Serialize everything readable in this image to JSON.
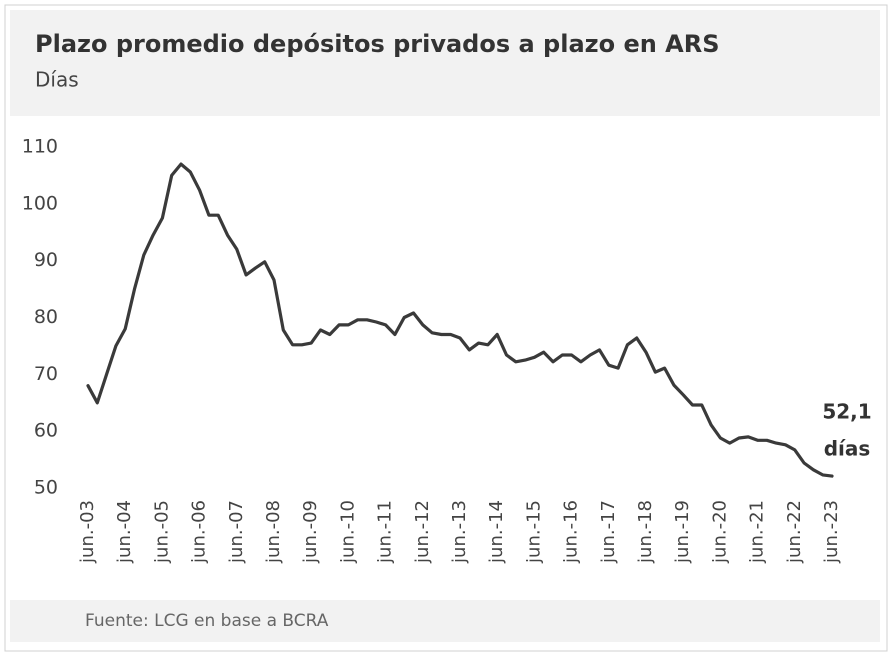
{
  "chart_data": {
    "type": "line",
    "title": "Plazo promedio depósitos privados a plazo en ARS",
    "subtitle": "Días",
    "source": "Fuente: LCG en base a BCRA",
    "annotation": [
      "52,1",
      "días"
    ],
    "color": "#3a3a3a",
    "ylim": [
      50,
      110
    ],
    "yticks": [
      50,
      60,
      70,
      80,
      90,
      100,
      110
    ],
    "grid": false,
    "categories": [
      "jun.-03",
      null,
      null,
      null,
      "jun.-04",
      null,
      null,
      null,
      "jun.-05",
      null,
      null,
      null,
      "jun.-06",
      null,
      null,
      null,
      "jun.-07",
      null,
      null,
      null,
      "jun.-08",
      null,
      null,
      null,
      "jun.-09",
      null,
      null,
      null,
      "jun.-10",
      null,
      null,
      null,
      "jun.-11",
      null,
      null,
      null,
      "jun.-12",
      null,
      null,
      null,
      "jun.-13",
      null,
      null,
      null,
      "jun.-14",
      null,
      null,
      null,
      "jun.-15",
      null,
      null,
      null,
      "jun.-16",
      null,
      null,
      null,
      "jun.-17",
      null,
      null,
      null,
      "jun.-18",
      null,
      null,
      null,
      "jun.-19",
      null,
      null,
      null,
      "jun.-20",
      null,
      null,
      null,
      "jun.-21",
      null,
      null,
      null,
      "jun.-22",
      null,
      null,
      null,
      "jun.-23"
    ],
    "values": [
      68,
      65,
      70,
      75,
      78,
      85,
      91,
      94.5,
      97.5,
      105,
      107,
      105.6,
      102.4,
      98,
      98,
      94.5,
      92,
      87.5,
      88.7,
      89.8,
      86.6,
      77.8,
      75.2,
      75.2,
      75.5,
      77.8,
      77,
      78.7,
      78.7,
      79.6,
      79.6,
      79.2,
      78.7,
      77,
      80,
      80.8,
      78.7,
      77.3,
      77,
      77,
      76.4,
      74.3,
      75.5,
      75.2,
      77,
      73.4,
      72.2,
      72.5,
      73,
      73.9,
      72.2,
      73.4,
      73.4,
      72.2,
      73.4,
      74.3,
      71.6,
      71.1,
      75.2,
      76.4,
      73.9,
      70.4,
      71.1,
      68.1,
      66.4,
      64.6,
      64.6,
      61.1,
      58.8,
      57.9,
      58.8,
      59,
      58.4,
      58.4,
      57.9,
      57.6,
      56.7,
      54.4,
      53.2,
      52.3,
      52.1
    ]
  }
}
